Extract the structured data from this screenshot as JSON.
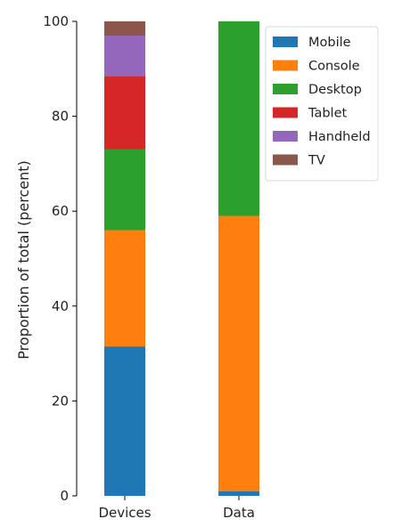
{
  "chart_data": {
    "type": "bar",
    "stacked": true,
    "title": "",
    "xlabel": "",
    "ylabel": "Proportion of total (percent)",
    "ylim": [
      0,
      100
    ],
    "yticks": [
      0,
      20,
      40,
      60,
      80,
      100
    ],
    "grid": false,
    "legend_position": "top-right",
    "categories": [
      "Devices",
      "Data"
    ],
    "series": [
      {
        "name": "Mobile",
        "color": "#1f77b4",
        "values": [
          31.5,
          1.0
        ]
      },
      {
        "name": "Console",
        "color": "#ff7f0e",
        "values": [
          24.5,
          58.0
        ]
      },
      {
        "name": "Desktop",
        "color": "#2ca02c",
        "values": [
          17.0,
          41.0
        ]
      },
      {
        "name": "Tablet",
        "color": "#d62728",
        "values": [
          15.5,
          0
        ]
      },
      {
        "name": "Handheld",
        "color": "#9467bd",
        "values": [
          8.5,
          0
        ]
      },
      {
        "name": "TV",
        "color": "#8c564b",
        "values": [
          3.0,
          0
        ]
      }
    ]
  }
}
